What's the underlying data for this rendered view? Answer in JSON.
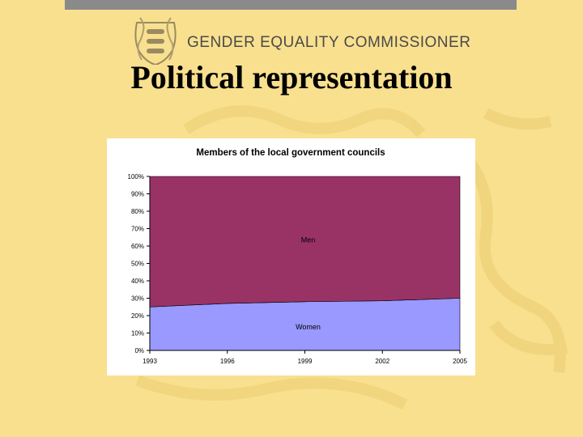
{
  "header": {
    "org_name": "GENDER EQUALITY COMMISSIONER",
    "slide_title": "Political representation"
  },
  "colors": {
    "background": "#f8e08f",
    "men": "#993366",
    "women": "#9999ff",
    "topbar": "#8a8a8a"
  },
  "icons": {
    "logo": "coat-of-arms-three-lions-icon"
  },
  "chart_data": {
    "type": "area",
    "title": "Members of the local government councils",
    "x": [
      "1993",
      "1996",
      "1999",
      "2002",
      "2005"
    ],
    "ylim": [
      0,
      100
    ],
    "yticks": [
      "0%",
      "10%",
      "20%",
      "30%",
      "40%",
      "50%",
      "60%",
      "70%",
      "80%",
      "90%",
      "100%"
    ],
    "stacked_percent": true,
    "series": [
      {
        "name": "Women",
        "values": [
          25,
          27,
          28,
          28.5,
          30
        ]
      },
      {
        "name": "Men",
        "values": [
          75,
          73,
          72,
          71.5,
          70
        ]
      }
    ],
    "xlabel": "",
    "ylabel": "",
    "grid": false
  }
}
